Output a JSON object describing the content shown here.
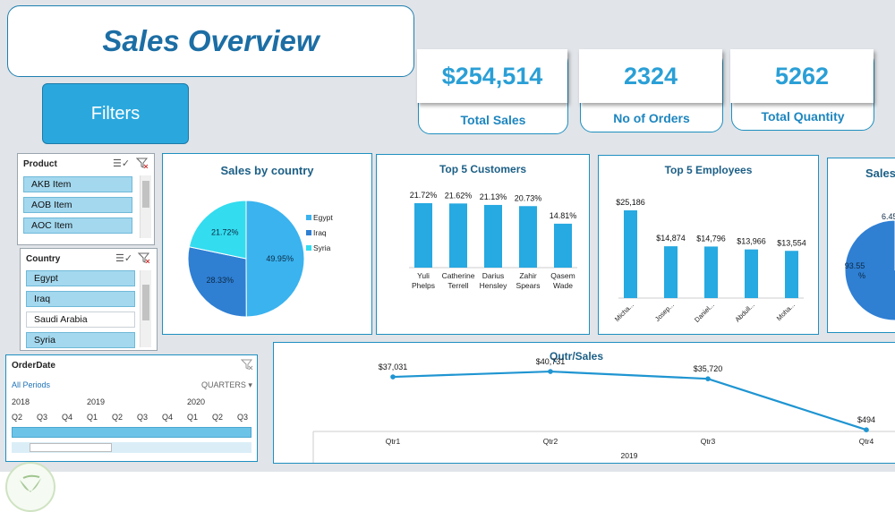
{
  "title": "Sales Overview",
  "filters_label": "Filters",
  "kpis": [
    {
      "value": "$254,514",
      "label": "Total Sales"
    },
    {
      "value": "2324",
      "label": "No of Orders"
    },
    {
      "value": "5262",
      "label": "Total Quantity"
    }
  ],
  "product_slicer": {
    "header": "Product",
    "items": [
      "AKB Item",
      "AOB Item",
      "AOC Item"
    ]
  },
  "country_slicer": {
    "header": "Country",
    "items": [
      "Egypt",
      "Iraq",
      "Saudi Arabia",
      "Syria"
    ],
    "selected": [
      "Egypt",
      "Iraq",
      "Syria"
    ]
  },
  "timeline": {
    "header": "OrderDate",
    "periods_label": "All Periods",
    "level_label": "QUARTERS",
    "years": [
      "2018",
      "2019",
      "2020"
    ],
    "quarters": [
      "Q2",
      "Q3",
      "Q4",
      "Q1",
      "Q2",
      "Q3",
      "Q4",
      "Q1",
      "Q2",
      "Q3"
    ]
  },
  "chart_data": [
    {
      "type": "pie",
      "title": "Sales by country",
      "categories": [
        "Egypt",
        "Iraq",
        "Syria"
      ],
      "values": [
        49.95,
        28.33,
        21.72
      ],
      "labels": [
        "49.95%",
        "28.33%",
        "21.72%"
      ],
      "colors": [
        "#3ab3ef",
        "#2f7fd3",
        "#33dcef"
      ],
      "legend": "right"
    },
    {
      "type": "bar",
      "title": "Top 5 Customers",
      "categories": [
        "Yuli Phelps",
        "Catherine Terrell",
        "Darius Hensley",
        "Zahir Spears",
        "Qasem Wade"
      ],
      "values": [
        21.72,
        21.62,
        21.13,
        20.73,
        14.81
      ],
      "labels": [
        "21.72%",
        "21.62%",
        "21.13%",
        "20.73%",
        "14.81%"
      ]
    },
    {
      "type": "bar",
      "title": "Top 5 Employees",
      "categories": [
        "Micha...",
        "Josep...",
        "Daniel...",
        "Abdull...",
        "Moha..."
      ],
      "values": [
        25186,
        14874,
        14796,
        13966,
        13554
      ],
      "labels": [
        "$25,186",
        "$14,874",
        "$14,796",
        "$13,966",
        "$13,554"
      ]
    },
    {
      "type": "pie",
      "title": "Sales",
      "values": [
        93.55,
        6.45
      ],
      "labels": [
        "93.55 %",
        "6.45"
      ],
      "colors": [
        "#2f7fd3",
        "#33dcef"
      ]
    },
    {
      "type": "line",
      "title": "Qutr/Sales",
      "categories": [
        "Qtr1",
        "Qtr2",
        "Qtr3",
        "Qtr4"
      ],
      "group_label": "2019",
      "values": [
        37031,
        40731,
        35720,
        494
      ],
      "labels": [
        "$37,031",
        "$40,731",
        "$35,720",
        "$494"
      ]
    }
  ]
}
